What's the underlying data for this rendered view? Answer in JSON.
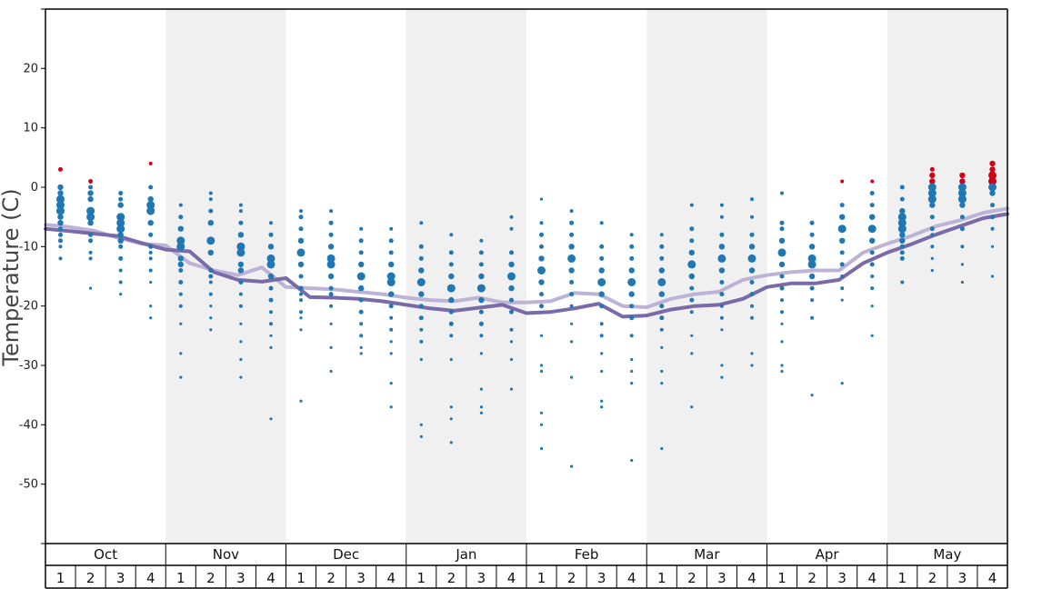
{
  "chart_data": {
    "type": "scatter",
    "title": "",
    "ylabel": "Temperature (C)",
    "xlabel": "",
    "ylim": [
      -60,
      30
    ],
    "yticks": [
      20,
      10,
      0,
      -10,
      -20,
      -30,
      -40,
      -50
    ],
    "yticklabels": [
      "20",
      "10",
      "0",
      "-10",
      "-20",
      "-30",
      "-40",
      "-50"
    ],
    "months": [
      "Oct",
      "Nov",
      "Dec",
      "Jan",
      "Feb",
      "Mar",
      "Apr",
      "May"
    ],
    "weeks": [
      "1",
      "2",
      "3",
      "4"
    ],
    "shaded_months": [
      "Nov",
      "Jan",
      "Mar",
      "May"
    ],
    "colors": {
      "dot": "#1f77b4",
      "dot_warm": "#d0021b",
      "line_mean": "#bcb3d6",
      "line_low": "#7a6aa8",
      "shade": "#f0f0f0",
      "axis": "#000000"
    },
    "series": [
      {
        "name": "",
        "style": "line",
        "values": [
          -6.3,
          -6.7,
          -7.3,
          -8.5,
          -9.5,
          -9.8,
          -12.8,
          -14.0,
          -14.8,
          -13.5,
          -16.8,
          -17.0,
          -17.2,
          -17.6,
          -18.0,
          -18.6,
          -19.0,
          -19.2,
          -18.6,
          -19.4,
          -19.4,
          -19.2,
          -17.8,
          -18.0,
          -20.0,
          -20.2,
          -18.8,
          -18.0,
          -17.6,
          -15.6,
          -14.8,
          -14.3,
          -14.0,
          -14.0,
          -11.0,
          -9.5,
          -8.2,
          -6.6,
          -5.6,
          -4.3,
          -3.6
        ]
      },
      {
        "name": "",
        "style": "line",
        "values": [
          -7.0,
          -7.4,
          -7.8,
          -8.2,
          -9.4,
          -10.5,
          -10.8,
          -14.3,
          -15.6,
          -15.9,
          -15.3,
          -18.5,
          -18.6,
          -18.8,
          -19.2,
          -19.8,
          -20.4,
          -20.8,
          -20.3,
          -19.8,
          -21.2,
          -21.0,
          -20.4,
          -19.6,
          -21.8,
          -21.6,
          -20.6,
          -20.0,
          -19.8,
          -18.8,
          -16.8,
          -16.2,
          -16.2,
          -15.6,
          -12.8,
          -11.0,
          -9.6,
          -8.0,
          -6.6,
          -5.2,
          -4.5
        ]
      }
    ],
    "weekly_observations": [
      {
        "week": "Oct 1",
        "values": [
          3,
          0,
          -1,
          -2,
          -3,
          -4,
          -5,
          -6,
          -7,
          -8,
          -9,
          -10,
          -12
        ]
      },
      {
        "week": "Oct 2",
        "values": [
          1,
          0,
          -1,
          -2,
          -4,
          -5,
          -6,
          -8,
          -9,
          -11,
          -12,
          -17
        ]
      },
      {
        "week": "Oct 3",
        "values": [
          -1,
          -2,
          -3,
          -5,
          -6,
          -7,
          -8,
          -9,
          -10,
          -12,
          -14,
          -16,
          -18
        ]
      },
      {
        "week": "Oct 4",
        "values": [
          4,
          0,
          -2,
          -3,
          -4,
          -6,
          -8,
          -10,
          -11,
          -12,
          -14,
          -16,
          -20,
          -22
        ]
      },
      {
        "week": "Nov 1",
        "values": [
          -3,
          -5,
          -7,
          -9,
          -10,
          -12,
          -13,
          -14,
          -16,
          -18,
          -20,
          -23,
          -28,
          -32
        ]
      },
      {
        "week": "Nov 2",
        "values": [
          -1,
          -2,
          -4,
          -6,
          -9,
          -11,
          -14,
          -15,
          -16,
          -18,
          -20,
          -22,
          -24
        ]
      },
      {
        "week": "Nov 3",
        "values": [
          -3,
          -4,
          -6,
          -8,
          -10,
          -11,
          -13,
          -14,
          -16,
          -18,
          -20,
          -23,
          -26,
          -29,
          -32
        ]
      },
      {
        "week": "Nov 4",
        "values": [
          -6,
          -8,
          -10,
          -12,
          -13,
          -15,
          -17,
          -19,
          -21,
          -23,
          -25,
          -27,
          -39
        ]
      },
      {
        "week": "Dec 1",
        "values": [
          -4,
          -5,
          -7,
          -9,
          -11,
          -13,
          -15,
          -17,
          -18,
          -19,
          -21,
          -22,
          -24,
          -36
        ]
      },
      {
        "week": "Dec 2",
        "values": [
          -4,
          -6,
          -8,
          -10,
          -12,
          -13,
          -15,
          -17,
          -18,
          -20,
          -23,
          -27,
          -31
        ]
      },
      {
        "week": "Dec 3",
        "values": [
          -7,
          -9,
          -11,
          -13,
          -15,
          -17,
          -19,
          -21,
          -23,
          -25,
          -27,
          -28
        ]
      },
      {
        "week": "Dec 4",
        "values": [
          -7,
          -9,
          -11,
          -13,
          -15,
          -16,
          -18,
          -20,
          -22,
          -24,
          -26,
          -28,
          -33,
          -37
        ]
      },
      {
        "week": "Jan 1",
        "values": [
          -6,
          -10,
          -12,
          -14,
          -16,
          -18,
          -20,
          -22,
          -24,
          -26,
          -29,
          -40,
          -42
        ]
      },
      {
        "week": "Jan 2",
        "values": [
          -8,
          -11,
          -13,
          -15,
          -17,
          -19,
          -21,
          -23,
          -25,
          -29,
          -37,
          -39,
          -43
        ]
      },
      {
        "week": "Jan 3",
        "values": [
          -9,
          -11,
          -13,
          -15,
          -17,
          -19,
          -21,
          -23,
          -25,
          -28,
          -34,
          -37,
          -38
        ]
      },
      {
        "week": "Jan 4",
        "values": [
          -5,
          -7,
          -11,
          -13,
          -15,
          -17,
          -19,
          -21,
          -24,
          -26,
          -29,
          -34
        ]
      },
      {
        "week": "Feb 1",
        "values": [
          -2,
          -6,
          -8,
          -10,
          -12,
          -14,
          -16,
          -18,
          -20,
          -25,
          -30,
          -31,
          -38,
          -40,
          -44
        ]
      },
      {
        "week": "Feb 2",
        "values": [
          -4,
          -6,
          -8,
          -10,
          -12,
          -14,
          -16,
          -18,
          -20,
          -23,
          -26,
          -32,
          -47
        ]
      },
      {
        "week": "Feb 3",
        "values": [
          -6,
          -10,
          -12,
          -14,
          -16,
          -18,
          -20,
          -23,
          -25,
          -28,
          -31,
          -36,
          -37
        ]
      },
      {
        "week": "Feb 4",
        "values": [
          -8,
          -10,
          -12,
          -14,
          -16,
          -18,
          -20,
          -22,
          -25,
          -29,
          -31,
          -33,
          -46
        ]
      },
      {
        "week": "Mar 1",
        "values": [
          -8,
          -10,
          -12,
          -14,
          -16,
          -18,
          -20,
          -22,
          -24,
          -27,
          -31,
          -33,
          -44
        ]
      },
      {
        "week": "Mar 2",
        "values": [
          -3,
          -7,
          -9,
          -11,
          -13,
          -15,
          -17,
          -19,
          -21,
          -25,
          -28,
          -37
        ]
      },
      {
        "week": "Mar 3",
        "values": [
          -3,
          -5,
          -8,
          -10,
          -12,
          -14,
          -16,
          -18,
          -20,
          -22,
          -24,
          -30,
          -32
        ]
      },
      {
        "week": "Mar 4",
        "values": [
          -2,
          -5,
          -8,
          -10,
          -12,
          -14,
          -16,
          -18,
          -20,
          -22,
          -28,
          -30
        ]
      },
      {
        "week": "Apr 1",
        "values": [
          -1,
          -6,
          -7,
          -9,
          -11,
          -13,
          -15,
          -17,
          -19,
          -21,
          -23,
          -26,
          -30,
          -31
        ]
      },
      {
        "week": "Apr 2",
        "values": [
          -6,
          -8,
          -10,
          -12,
          -13,
          -15,
          -17,
          -19,
          -22,
          -35
        ]
      },
      {
        "week": "Apr 3",
        "values": [
          1,
          -3,
          -5,
          -7,
          -9,
          -11,
          -13,
          -15,
          -17,
          -19,
          -33
        ]
      },
      {
        "week": "Apr 4",
        "values": [
          1,
          -1,
          -3,
          -5,
          -7,
          -9,
          -11,
          -13,
          -15,
          -17,
          -20,
          -25
        ]
      },
      {
        "week": "May 1",
        "values": [
          0,
          -2,
          -4,
          -5,
          -6,
          -7,
          -8,
          -9,
          -10,
          -11,
          -12,
          -16
        ]
      },
      {
        "week": "May 2",
        "values": [
          3,
          2,
          1,
          0,
          -1,
          -2,
          -3,
          -5,
          -7,
          -8,
          -10,
          -12,
          -14
        ]
      },
      {
        "week": "May 3",
        "values": [
          2,
          1,
          0,
          -1,
          -2,
          -3,
          -5,
          -7,
          -10,
          -13,
          -16
        ]
      },
      {
        "week": "May 4",
        "values": [
          4,
          3,
          2,
          1,
          0,
          -1,
          -3,
          -5,
          -7,
          -10,
          -15
        ]
      }
    ]
  }
}
